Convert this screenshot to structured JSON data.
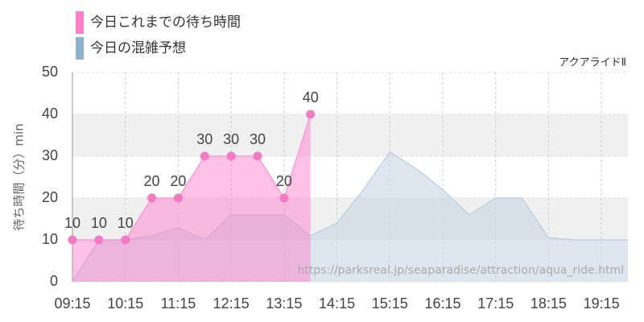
{
  "chart_data": {
    "type": "area",
    "subtitle": "アクアライドⅡ",
    "y_label": "待ち時間（分）min",
    "annotation": "https://parksreal.jp/seaparadise/attraction/aqua_ride.html",
    "xlim": [
      "09:15",
      "19:45"
    ],
    "xticks": [
      "09:15",
      "10:15",
      "11:15",
      "12:15",
      "13:15",
      "14:15",
      "15:15",
      "16:15",
      "17:15",
      "18:15",
      "19:15"
    ],
    "ylim": [
      0,
      50
    ],
    "yticks": [
      0,
      10,
      20,
      30,
      40,
      50
    ],
    "grid": true,
    "series": [
      {
        "name": "今日の混雑予想",
        "color": "#8fb2d0",
        "x": [
          "09:15",
          "09:45",
          "10:15",
          "10:45",
          "11:15",
          "11:45",
          "12:15",
          "12:45",
          "13:15",
          "13:45",
          "14:15",
          "14:45",
          "15:15",
          "15:45",
          "16:15",
          "16:45",
          "17:15",
          "17:45",
          "18:15",
          "18:45",
          "19:15",
          "19:45"
        ],
        "values": [
          0,
          10,
          10,
          11,
          13,
          10,
          16,
          16,
          16,
          11,
          14,
          22,
          31,
          27,
          22,
          16,
          20,
          20,
          10.5,
          10,
          10,
          10
        ]
      },
      {
        "name": "今日これまでの待ち時間",
        "color": "#ff80c8",
        "x": [
          "09:15",
          "09:45",
          "10:15",
          "10:45",
          "11:15",
          "11:45",
          "12:15",
          "12:45",
          "13:15",
          "13:45"
        ],
        "values": [
          10,
          10,
          10,
          20,
          20,
          30,
          30,
          30,
          20,
          40
        ]
      }
    ]
  }
}
